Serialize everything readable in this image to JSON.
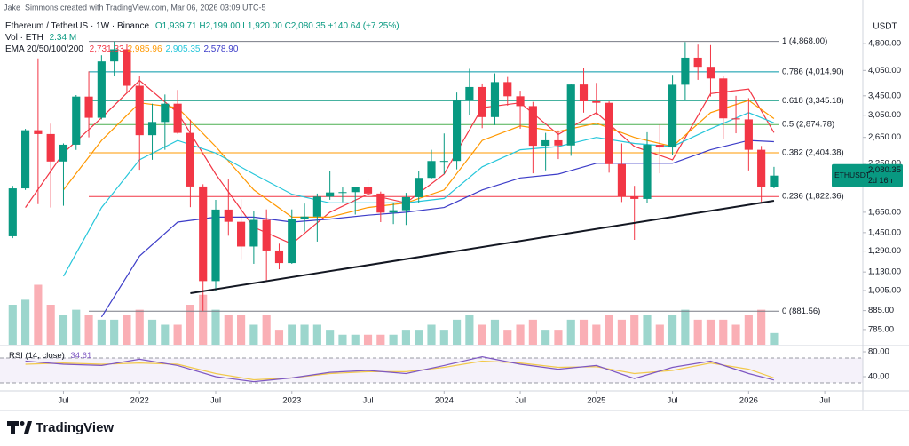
{
  "header": {
    "credit": "Jake_Simmons created with TradingView.com, Mar 06, 2026 03:09 UTC-5"
  },
  "chart_data": {
    "type": "candlestick",
    "symbol": "Ethereum / TetherUS · 1W · Binance",
    "ohlc_legend": "O1,939.71 H2,199.00 L1,920.00 C2,080.35 +140.64 (+7.25%)",
    "volume_legend": {
      "label": "Vol · ETH",
      "value": "2.34 M"
    },
    "ema_legend": "EMA 20/50/100/200",
    "currency": "USDT",
    "scale": "log",
    "grid": false,
    "up_color": "#089981",
    "down_color": "#f23645",
    "x": [
      "2021-03",
      "2021-04",
      "2021-05",
      "2021-06",
      "2021-07",
      "2021-08",
      "2021-09",
      "2021-10",
      "2021-11",
      "2021-12",
      "2022-01",
      "2022-02",
      "2022-03",
      "2022-04",
      "2022-05",
      "2022-06",
      "2022-07",
      "2022-08",
      "2022-09",
      "2022-10",
      "2022-11",
      "2022-12",
      "2023-01",
      "2023-02",
      "2023-03",
      "2023-04",
      "2023-05",
      "2023-06",
      "2023-07",
      "2023-08",
      "2023-09",
      "2023-10",
      "2023-11",
      "2023-12",
      "2024-01",
      "2024-02",
      "2024-03",
      "2024-04",
      "2024-05",
      "2024-06",
      "2024-07",
      "2024-08",
      "2024-09",
      "2024-10",
      "2024-11",
      "2024-12",
      "2025-01",
      "2025-02",
      "2025-03",
      "2025-04",
      "2025-05",
      "2025-06",
      "2025-07",
      "2025-08",
      "2025-09",
      "2025-10",
      "2025-11",
      "2025-12",
      "2026-01",
      "2026-02",
      "2026-03"
    ],
    "open": [
      1417,
      1919,
      2773,
      2707,
      2275,
      2530,
      3433,
      3001,
      4288,
      4631,
      3676,
      2688,
      2922,
      3282,
      2727,
      1942,
      1067,
      1678,
      1553,
      1328,
      1572,
      1295,
      1196,
      1585,
      1605,
      1821,
      1870,
      1874,
      1934,
      1857,
      1646,
      1671,
      1815,
      2051,
      2282,
      2283,
      3341,
      3647,
      3014,
      3763,
      3440,
      3232,
      2513,
      2602,
      2518,
      3705,
      3332,
      3300,
      2237,
      1822,
      1795,
      2528,
      2486,
      3700,
      4391,
      4145,
      3850,
      2990,
      2970,
      2450,
      1939.71
    ],
    "high": [
      1950,
      2797,
      4372,
      2891,
      2551,
      3466,
      4027,
      4460,
      4868,
      4778,
      3900,
      3282,
      3478,
      3580,
      2966,
      1970,
      1784,
      2030,
      1790,
      1665,
      1680,
      1352,
      1680,
      1743,
      1857,
      2141,
      1930,
      1930,
      2030,
      1880,
      1755,
      1865,
      2140,
      2450,
      2717,
      3522,
      4093,
      3730,
      3977,
      3887,
      3563,
      3320,
      2727,
      2770,
      3720,
      4108,
      3744,
      3330,
      2550,
      1950,
      2738,
      2880,
      3940,
      4850,
      4770,
      4755,
      3920,
      3450,
      3400,
      2510,
      2199
    ],
    "low": [
      1400,
      1900,
      1737,
      1700,
      1719,
      2448,
      2651,
      2971,
      3900,
      3503,
      2159,
      2300,
      2450,
      2711,
      1704,
      881.56,
      1000,
      1422,
      1220,
      1190,
      1073,
      1150,
      1190,
      1460,
      1370,
      1785,
      1760,
      1626,
      1815,
      1550,
      1531,
      1522,
      1750,
      2040,
      2100,
      2165,
      3057,
      2810,
      2865,
      3242,
      2800,
      2111,
      2151,
      2310,
      2358,
      3100,
      3060,
      2120,
      1760,
      1385,
      1750,
      2111,
      2373,
      3355,
      3815,
      3435,
      2623,
      2720,
      2150,
      1760,
      1920
    ],
    "close": [
      1919,
      2773,
      2707,
      2275,
      2530,
      3433,
      3001,
      4288,
      4631,
      3676,
      2688,
      2922,
      3282,
      2727,
      1942,
      1067,
      1678,
      1553,
      1328,
      1572,
      1295,
      1196,
      1585,
      1605,
      1821,
      1870,
      1874,
      1934,
      1857,
      1646,
      1671,
      1815,
      2051,
      2282,
      2283,
      3341,
      3647,
      3014,
      3763,
      3440,
      3232,
      2513,
      2602,
      2518,
      3705,
      3332,
      3300,
      2237,
      1822,
      1795,
      2528,
      2486,
      3700,
      4391,
      4145,
      3850,
      2990,
      2970,
      2450,
      1940,
      2080.35
    ],
    "volume": {
      "ylim": [
        0,
        16
      ],
      "values": [
        8,
        9,
        12,
        8,
        6,
        7,
        6,
        5,
        5,
        6,
        7,
        5,
        4,
        4,
        8,
        10,
        7,
        6,
        6,
        4,
        6,
        3,
        4,
        4,
        4,
        3,
        2,
        2,
        2,
        2,
        2,
        3,
        3,
        4,
        3,
        5,
        6,
        4,
        5,
        3,
        4,
        5,
        3,
        3,
        5,
        5,
        4,
        6,
        5,
        6,
        6,
        4,
        6,
        7,
        5,
        5,
        5,
        4,
        6,
        7,
        2.34
      ]
    },
    "xlim": [
      "2021-02",
      "2026-10"
    ],
    "xticks": [
      {
        "value": "2021-07",
        "label": "Jul"
      },
      {
        "value": "2022-01",
        "label": "2022"
      },
      {
        "value": "2022-07",
        "label": "Jul"
      },
      {
        "value": "2023-01",
        "label": "2023"
      },
      {
        "value": "2023-07",
        "label": "Jul"
      },
      {
        "value": "2024-01",
        "label": "2024"
      },
      {
        "value": "2024-07",
        "label": "Jul"
      },
      {
        "value": "2025-01",
        "label": "2025"
      },
      {
        "value": "2025-07",
        "label": "Jul"
      },
      {
        "value": "2026-01",
        "label": "2026"
      },
      {
        "value": "2026-07",
        "label": "Jul"
      }
    ],
    "ylim": [
      713,
      5110
    ],
    "yticks": [
      {
        "value": 4800,
        "label": "4,800.00"
      },
      {
        "value": 4050,
        "label": "4,050.00"
      },
      {
        "value": 3450,
        "label": "3,450.00"
      },
      {
        "value": 3050,
        "label": "3,050.00"
      },
      {
        "value": 2650,
        "label": "2,650.00"
      },
      {
        "value": 2250,
        "label": "2,250.00"
      },
      {
        "value": 1650,
        "label": "1,650.00"
      },
      {
        "value": 1450,
        "label": "1,450.00"
      },
      {
        "value": 1290,
        "label": "1,290.00"
      },
      {
        "value": 1130,
        "label": "1,130.00"
      },
      {
        "value": 1005,
        "label": "1,005.00"
      },
      {
        "value": 885,
        "label": "885.00"
      },
      {
        "value": 785,
        "label": "785.00"
      }
    ],
    "series": [
      {
        "color": "#f23645",
        "value_label": "2,731.33",
        "x": [
          "2021-04",
          "2021-07",
          "2021-10",
          "2022-01",
          "2022-04",
          "2022-07",
          "2022-10",
          "2023-01",
          "2023-04",
          "2023-07",
          "2023-10",
          "2024-01",
          "2024-04",
          "2024-07",
          "2024-10",
          "2025-01",
          "2025-04",
          "2025-07",
          "2025-10",
          "2026-01",
          "2026-03"
        ],
        "values": [
          1700,
          2400,
          3000,
          3800,
          3100,
          2100,
          1500,
          1350,
          1650,
          1850,
          1750,
          2100,
          3200,
          3300,
          2700,
          3100,
          2500,
          2300,
          3500,
          3600,
          2731.33
        ]
      },
      {
        "color": "#ff9800",
        "value_label": "2,985.96",
        "x": [
          "2021-04",
          "2021-07",
          "2021-10",
          "2022-01",
          "2022-04",
          "2022-07",
          "2022-10",
          "2023-01",
          "2023-04",
          "2023-07",
          "2023-10",
          "2024-01",
          "2024-04",
          "2024-07",
          "2024-10",
          "2025-01",
          "2025-04",
          "2025-07",
          "2025-10",
          "2026-01",
          "2026-03"
        ],
        "values": [
          null,
          1900,
          2600,
          3300,
          3200,
          2500,
          1900,
          1600,
          1600,
          1700,
          1750,
          1900,
          2600,
          2850,
          2750,
          2900,
          2650,
          2500,
          3100,
          3350,
          2985.96
        ]
      },
      {
        "color": "#26c6da",
        "value_label": "2,905.35",
        "x": [
          "2021-04",
          "2021-07",
          "2021-10",
          "2022-01",
          "2022-04",
          "2022-07",
          "2022-10",
          "2023-01",
          "2023-04",
          "2023-07",
          "2023-10",
          "2024-01",
          "2024-04",
          "2024-07",
          "2024-10",
          "2025-01",
          "2025-04",
          "2025-07",
          "2025-10",
          "2026-01",
          "2026-03"
        ],
        "values": [
          null,
          1100,
          1700,
          2300,
          2600,
          2400,
          2100,
          1850,
          1750,
          1750,
          1750,
          1800,
          2200,
          2450,
          2500,
          2650,
          2550,
          2500,
          2800,
          3100,
          2905.35
        ]
      },
      {
        "color": "#3d3dc8",
        "value_label": "2,578.90",
        "x": [
          "2021-04",
          "2021-07",
          "2021-10",
          "2022-01",
          "2022-04",
          "2022-07",
          "2022-10",
          "2023-01",
          "2023-04",
          "2023-07",
          "2023-10",
          "2024-01",
          "2024-04",
          "2024-07",
          "2024-10",
          "2025-01",
          "2025-04",
          "2025-07",
          "2025-10",
          "2026-01",
          "2026-03"
        ],
        "values": [
          null,
          null,
          850,
          1250,
          1550,
          1600,
          1600,
          1550,
          1580,
          1620,
          1650,
          1700,
          1900,
          2050,
          2100,
          2250,
          2250,
          2250,
          2450,
          2600,
          2578.9
        ]
      }
    ],
    "fib_levels": [
      {
        "label": "1 (4,868.00)",
        "value": 4868,
        "color": "#787b86"
      },
      {
        "label": "0.786 (4,014.90)",
        "value": 4014.9,
        "color": "#0097a7"
      },
      {
        "label": "0.618 (3,345.18)",
        "value": 3345.18,
        "color": "#089981"
      },
      {
        "label": "0.5 (2,874.78)",
        "value": 2874.78,
        "color": "#4caf50"
      },
      {
        "label": "0.382 (2,404.38)",
        "value": 2404.38,
        "color": "#ff9800"
      },
      {
        "label": "0.236 (1,822.36)",
        "value": 1822.36,
        "color": "#f23645"
      },
      {
        "label": "0 (881.56)",
        "value": 881.56,
        "color": "#787b86"
      }
    ],
    "trendline": {
      "x": [
        "2022-05",
        "2026-03"
      ],
      "values": [
        988,
        1774
      ],
      "color": "#131722"
    },
    "price_tag": {
      "symbol": "ETHUSDT",
      "price": "2,080.35",
      "countdown": "2d 16h",
      "value": 2080.35,
      "color": "#089981"
    },
    "rsi": {
      "label": "RSI (14, close)",
      "value_label": "34.61",
      "color": "#7e57c2",
      "ma_color": "#f2c94c",
      "ylim": [
        21.4,
        88.6
      ],
      "band": [
        30,
        70
      ],
      "yticks": [
        {
          "value": 80,
          "label": "80.00"
        },
        {
          "value": 40,
          "label": "40.00"
        }
      ],
      "x": [
        "2021-04",
        "2021-07",
        "2021-10",
        "2022-01",
        "2022-04",
        "2022-07",
        "2022-10",
        "2023-01",
        "2023-04",
        "2023-07",
        "2023-10",
        "2024-01",
        "2024-04",
        "2024-07",
        "2024-10",
        "2025-01",
        "2025-04",
        "2025-07",
        "2025-10",
        "2026-01",
        "2026-03"
      ],
      "values": [
        65,
        60,
        58,
        68,
        58,
        40,
        32,
        38,
        47,
        50,
        45,
        58,
        72,
        60,
        52,
        58,
        37,
        55,
        65,
        45,
        34.61
      ],
      "ma_values": [
        60,
        62,
        60,
        62,
        60,
        45,
        35,
        38,
        45,
        48,
        48,
        55,
        65,
        62,
        55,
        56,
        45,
        50,
        62,
        52,
        38
      ]
    }
  },
  "footer": {
    "brand": "TradingView"
  }
}
